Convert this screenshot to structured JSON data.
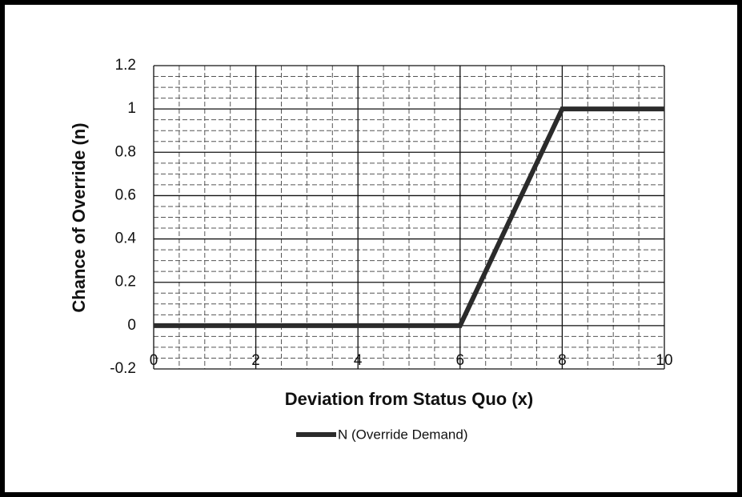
{
  "chart_data": {
    "type": "line",
    "x_label": "Deviation from Status Quo (x)",
    "y_label": "Chance of Override (n)",
    "series": [
      {
        "name": "N (Override Demand)",
        "color": "#2b2b2b",
        "x": [
          0,
          6,
          8,
          10
        ],
        "values": [
          0,
          0,
          1,
          1
        ]
      }
    ],
    "xlim": [
      0,
      10
    ],
    "ylim": [
      -0.2,
      1.2
    ],
    "xticks": [
      0,
      2,
      4,
      6,
      8,
      10
    ],
    "yticks": [
      -0.2,
      0,
      0.2,
      0.4,
      0.6,
      0.8,
      1,
      1.2
    ],
    "grid": true,
    "minor_grid": true,
    "legend": "bottom"
  }
}
